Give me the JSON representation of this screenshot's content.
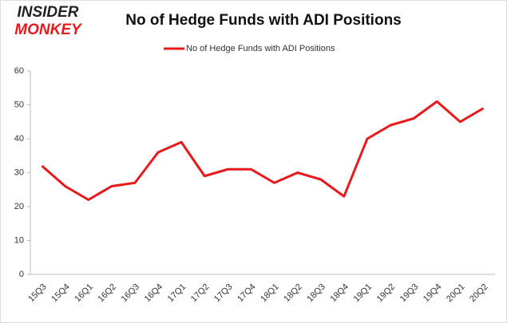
{
  "logo": {
    "line1": "INSIDER",
    "line2": "MONKEY"
  },
  "chart_data": {
    "type": "line",
    "title": "No of Hedge Funds with ADI Positions",
    "categories": [
      "15Q3",
      "15Q4",
      "16Q1",
      "16Q2",
      "16Q3",
      "16Q4",
      "17Q1",
      "17Q2",
      "17Q3",
      "17Q4",
      "18Q1",
      "18Q2",
      "18Q3",
      "18Q4",
      "19Q1",
      "19Q2",
      "19Q3",
      "19Q4",
      "20Q1",
      "20Q2"
    ],
    "series": [
      {
        "name": "No of Hedge Funds with ADI Positions",
        "color": "#e8191b",
        "values": [
          32,
          26,
          22,
          26,
          27,
          36,
          39,
          29,
          31,
          31,
          27,
          30,
          28,
          23,
          40,
          44,
          46,
          51,
          45,
          49
        ]
      }
    ],
    "ylim": [
      0,
      60
    ],
    "yticks": [
      0,
      10,
      20,
      30,
      40,
      50,
      60
    ],
    "grid": false,
    "legend": "top"
  }
}
